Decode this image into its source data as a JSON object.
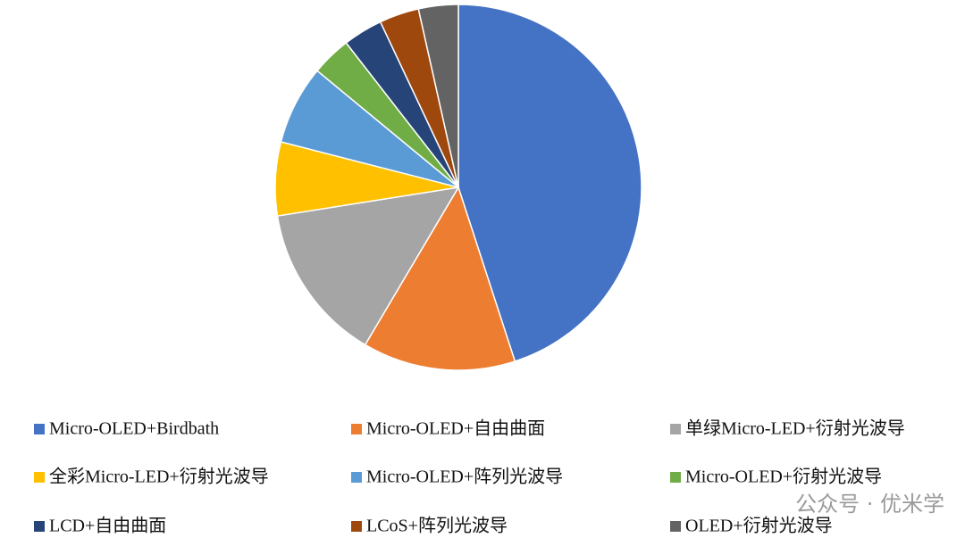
{
  "chart_data": {
    "type": "pie",
    "categories": [
      "Micro-OLED+Birdbath",
      "Micro-OLED+自由曲面",
      "单绿Micro-LED+衍射光波导",
      "全彩Micro-LED+衍射光波导",
      "Micro-OLED+阵列光波导",
      "Micro-OLED+衍射光波导",
      "LCD+自由曲面",
      "LCoS+阵列光波导",
      "OLED+衍射光波导"
    ],
    "values": [
      45,
      13.5,
      14,
      6.5,
      7,
      3.5,
      3.5,
      3.5,
      3.5
    ],
    "colors": [
      "#4472c4",
      "#ed7d31",
      "#a5a5a5",
      "#ffc000",
      "#5b9bd5",
      "#70ad47",
      "#264478",
      "#9e480e",
      "#636363"
    ],
    "watermark": "公众号 · 优米学"
  }
}
